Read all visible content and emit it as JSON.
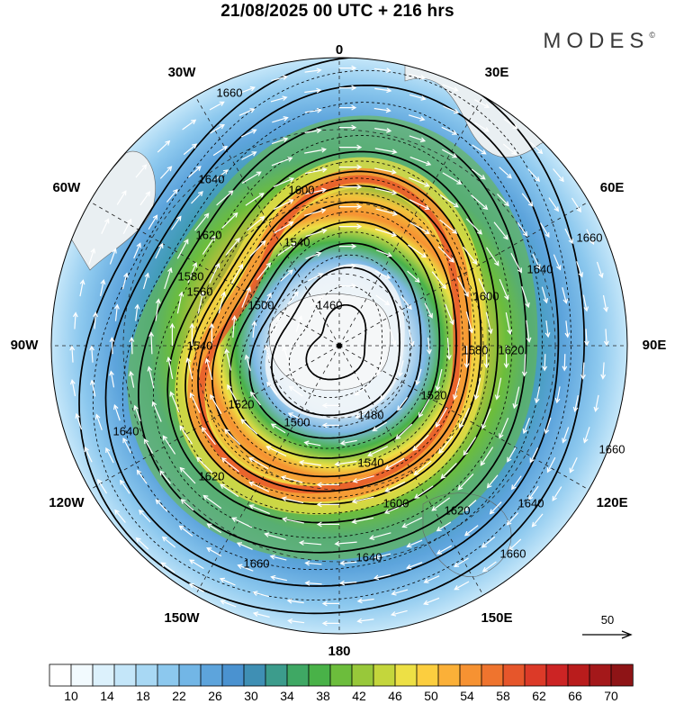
{
  "header": {
    "title": "21/08/2025  00 UTC  + 216 hrs",
    "brand": "MODES",
    "brand_mark": "©"
  },
  "map": {
    "projection": "south-polar-stereographic",
    "longitude_labels": [
      {
        "text": "0",
        "lon": 0
      },
      {
        "text": "30E",
        "lon": 30
      },
      {
        "text": "60E",
        "lon": 60
      },
      {
        "text": "90E",
        "lon": 90
      },
      {
        "text": "120E",
        "lon": 120
      },
      {
        "text": "150E",
        "lon": 150
      },
      {
        "text": "180",
        "lon": 180
      },
      {
        "text": "150W",
        "lon": -150
      },
      {
        "text": "120W",
        "lon": -120
      },
      {
        "text": "90W",
        "lon": -90
      },
      {
        "text": "60W",
        "lon": -60
      },
      {
        "text": "30W",
        "lon": -30
      }
    ],
    "contour_levels": [
      1460,
      1480,
      1500,
      1520,
      1540,
      1560,
      1580,
      1600,
      1620,
      1640,
      1660
    ],
    "contour_labels_shown": [
      "1460",
      "1480",
      "1500",
      "1520",
      "1540",
      "1560",
      "1580",
      "1600",
      "1620",
      "1640",
      "1660"
    ],
    "wind_vector_reference": {
      "label": "50",
      "icon": "arrow-right-icon"
    }
  },
  "colorbar": {
    "tick_labels": [
      "10",
      "14",
      "18",
      "22",
      "26",
      "30",
      "34",
      "38",
      "42",
      "46",
      "50",
      "54",
      "58",
      "62",
      "66",
      "70"
    ],
    "colors": [
      "#ffffff",
      "#f2fafe",
      "#dcf1fc",
      "#c4e6f9",
      "#a8d8f4",
      "#8cc8ee",
      "#72b6e6",
      "#5da4dc",
      "#4a92d0",
      "#3f8fb4",
      "#3c9c8c",
      "#3fa864",
      "#49b248",
      "#6cbd3c",
      "#98c83a",
      "#c4d63c",
      "#ede045",
      "#fcce3f",
      "#fbb038",
      "#f69232",
      "#ef742e",
      "#e6562b",
      "#dc3a28",
      "#cc2424",
      "#b91c1c",
      "#a4181a",
      "#8e1416"
    ]
  }
}
